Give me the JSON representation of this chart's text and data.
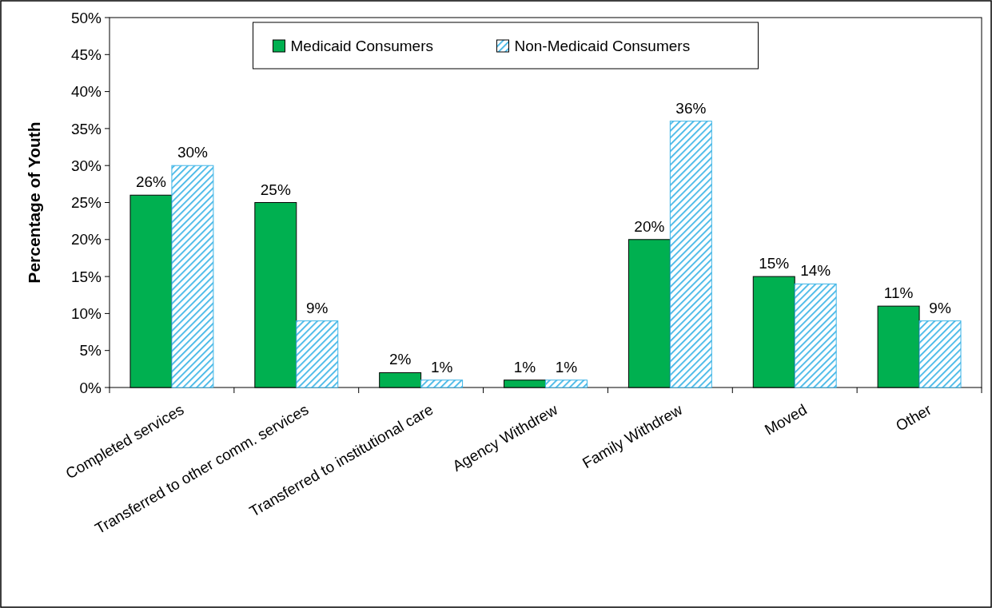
{
  "chart_data": {
    "type": "bar",
    "ylabel": "Percentage of Youth",
    "categories": [
      "Completed services",
      "Transferred to other comm. services",
      "Transferred to institutional care",
      "Agency Withdrew",
      "Family Withdrew",
      "Moved",
      "Other"
    ],
    "series": [
      {
        "name": "Medicaid Consumers",
        "color": "#00b050",
        "values": [
          26,
          25,
          2,
          1,
          20,
          15,
          11
        ],
        "value_labels": [
          "26%",
          "25%",
          "2%",
          "1%",
          "20%",
          "15%",
          "11%"
        ]
      },
      {
        "name": "Non-Medicaid Consumers",
        "color": "#3cb4e6",
        "values": [
          30,
          9,
          1,
          1,
          36,
          14,
          9
        ],
        "value_labels": [
          "30%",
          "9%",
          "1%",
          "1%",
          "36%",
          "14%",
          "9%"
        ]
      }
    ],
    "ylim": [
      0,
      50
    ],
    "yticks": [
      {
        "value": 0,
        "label": "0%"
      },
      {
        "value": 5,
        "label": "5%"
      },
      {
        "value": 10,
        "label": "10%"
      },
      {
        "value": 15,
        "label": "15%"
      },
      {
        "value": 20,
        "label": "20%"
      },
      {
        "value": 25,
        "label": "25%"
      },
      {
        "value": 30,
        "label": "30%"
      },
      {
        "value": 35,
        "label": "35%"
      },
      {
        "value": 40,
        "label": "40%"
      },
      {
        "value": 45,
        "label": "45%"
      },
      {
        "value": 50,
        "label": "50%"
      }
    ],
    "grid": false,
    "legend": "top"
  }
}
